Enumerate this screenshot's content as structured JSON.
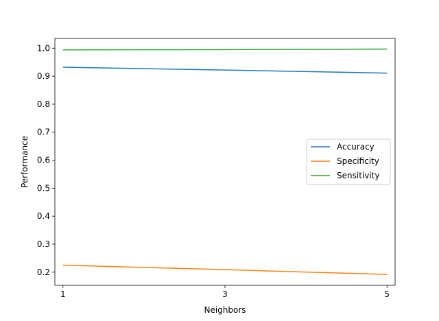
{
  "chart_data": {
    "type": "line",
    "title": "",
    "xlabel": "Neighbors",
    "ylabel": "Performance",
    "x": [
      1,
      3,
      5
    ],
    "xticks": [
      "1",
      "3",
      "5"
    ],
    "xlim": [
      0.9,
      5.1
    ],
    "yticks": [
      "0.2",
      "0.3",
      "0.4",
      "0.5",
      "0.6",
      "0.7",
      "0.8",
      "0.9",
      "1.0"
    ],
    "ylim": [
      0.153,
      1.035
    ],
    "grid": false,
    "legend_position": "center-right",
    "series": [
      {
        "name": "Accuracy",
        "color": "#1f77b4",
        "values": [
          0.932,
          0.922,
          0.911
        ]
      },
      {
        "name": "Specificity",
        "color": "#ff7f0e",
        "values": [
          0.225,
          0.209,
          0.192
        ]
      },
      {
        "name": "Sensitivity",
        "color": "#2ca02c",
        "values": [
          0.994,
          0.995,
          0.997
        ]
      }
    ]
  }
}
